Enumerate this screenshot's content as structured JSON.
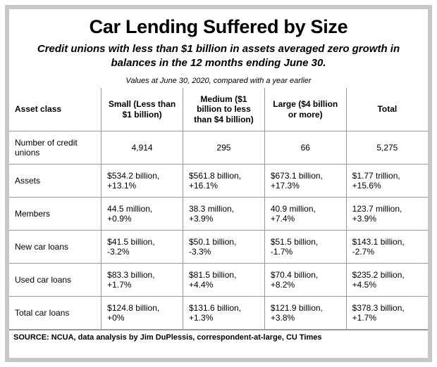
{
  "title": "Car Lending Suffered by Size",
  "subtitle": "Credit unions with less than $1 billion in assets averaged zero growth in balances in the 12 months ending June 30.",
  "caption": "Values at June 30, 2020, compared with a year earlier",
  "table": {
    "type": "table",
    "columns": [
      "Asset class",
      "Small (Less than $1 billion)",
      "Medium ($1 billion to less than $4 billion)",
      "Large ($4 billion or more)",
      "Total"
    ],
    "rows": [
      {
        "label": "Number of credit unions",
        "small": "4,914",
        "medium": "295",
        "large": "66",
        "total": "5,275"
      },
      {
        "label": "Assets",
        "small": "$534.2 billion, +13.1%",
        "medium": "$561.8 billion, +16.1%",
        "large": "$673.1 billion, +17.3%",
        "total": "$1.77 trillion, +15.6%"
      },
      {
        "label": "Members",
        "small": "44.5 million, +0.9%",
        "medium": "38.3 million, +3.9%",
        "large": "40.9 million, +7.4%",
        "total": "123.7 million, +3.9%"
      },
      {
        "label": "New car loans",
        "small": "$41.5 billion, -3.2%",
        "medium": "$50.1 billion, -3.3%",
        "large": "$51.5 billion, -1.7%",
        "total": "$143.1 billion, -2.7%"
      },
      {
        "label": "Used car loans",
        "small": "$83.3 billion, +1.7%",
        "medium": "$81.5 billion, +4.4%",
        "large": "$70.4 billion, +8.2%",
        "total": "$235.2 billion, +4.5%"
      },
      {
        "label": "Total car loans",
        "small": "$124.8 billion, +0%",
        "medium": "$131.6 billion, +1.3%",
        "large": "$121.9 billion, +3.8%",
        "total": "$378.3 billion, +1.7%"
      }
    ],
    "border_color": "#999999",
    "header_fontsize": 12,
    "body_fontsize": 12,
    "background_color": "#ffffff"
  },
  "source": "SOURCE: NCUA, data analysis by Jim DuPlessis, correspondent-at-large, CU Times",
  "frame": {
    "outer_border_color": "#c7c7c7",
    "outer_border_width": 6
  }
}
